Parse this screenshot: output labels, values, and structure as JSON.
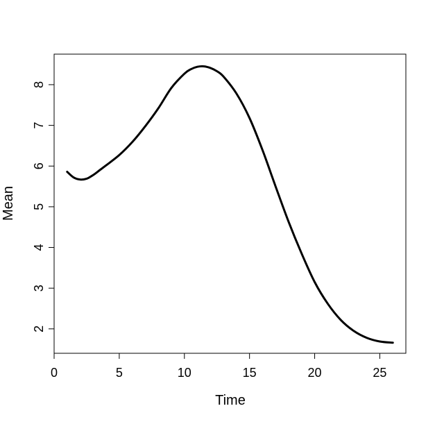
{
  "chart_data": {
    "type": "line",
    "title": "",
    "xlabel": "Time",
    "ylabel": "Mean",
    "xlim": [
      0,
      27
    ],
    "ylim": [
      1.4,
      8.75
    ],
    "x_ticks": [
      0,
      5,
      10,
      15,
      20,
      25
    ],
    "y_ticks": [
      2,
      3,
      4,
      5,
      6,
      7,
      8
    ],
    "grid": false,
    "series": [
      {
        "color": "#000000",
        "x": [
          1,
          1.5,
          2,
          2.5,
          3,
          3.5,
          4,
          5,
          6,
          7,
          8,
          9,
          10,
          10.5,
          11,
          11.5,
          12,
          12.5,
          13,
          14,
          15,
          16,
          17,
          18,
          19,
          20,
          21,
          22,
          23,
          24,
          25,
          26
        ],
        "y": [
          5.86,
          5.72,
          5.67,
          5.69,
          5.78,
          5.9,
          6.02,
          6.27,
          6.59,
          6.98,
          7.42,
          7.92,
          8.27,
          8.38,
          8.44,
          8.45,
          8.41,
          8.33,
          8.2,
          7.78,
          7.18,
          6.39,
          5.5,
          4.63,
          3.85,
          3.15,
          2.62,
          2.22,
          1.95,
          1.78,
          1.69,
          1.66
        ]
      }
    ]
  }
}
